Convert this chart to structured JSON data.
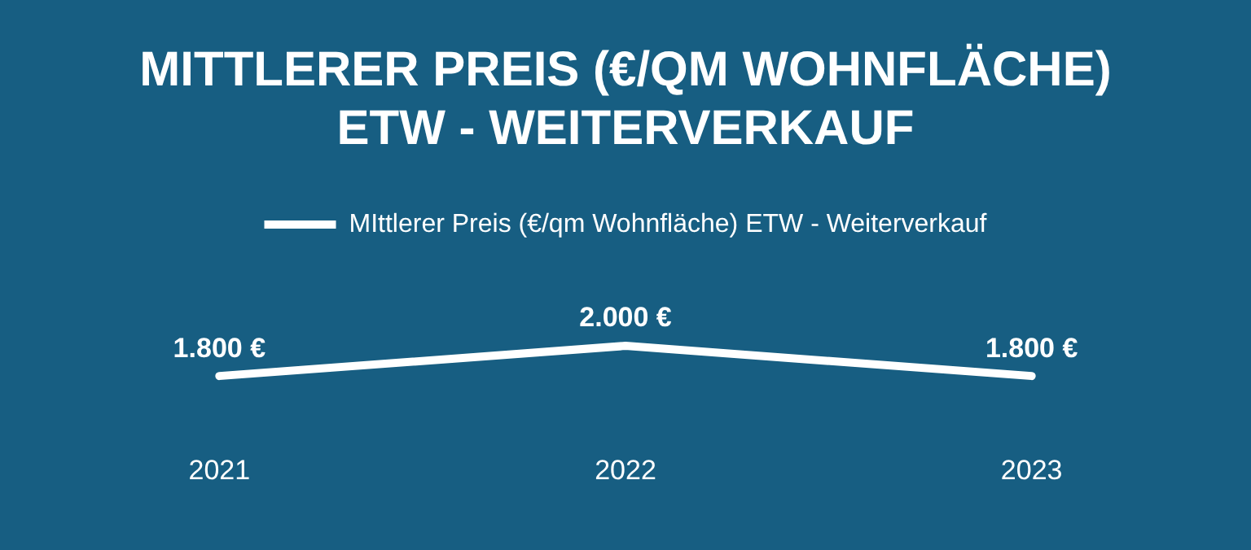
{
  "chart_data": {
    "type": "line",
    "title": [
      "MITTLERER PREIS (€/QM WOHNFLÄCHE)",
      "ETW - WEITERVERKAUF"
    ],
    "categories": [
      "2021",
      "2022",
      "2023"
    ],
    "series": [
      {
        "name": "MIttlerer Preis (€/qm Wohnfläche) ETW - Weiterverkauf",
        "color": "#ffffff",
        "values": [
          1800,
          2000,
          1800
        ],
        "value_labels": [
          "1.800 €",
          "2.000 €",
          "1.800 €"
        ]
      }
    ],
    "legend": "top",
    "tick_labels": "x",
    "grid": false,
    "marker": "none",
    "line_style": "solid"
  }
}
